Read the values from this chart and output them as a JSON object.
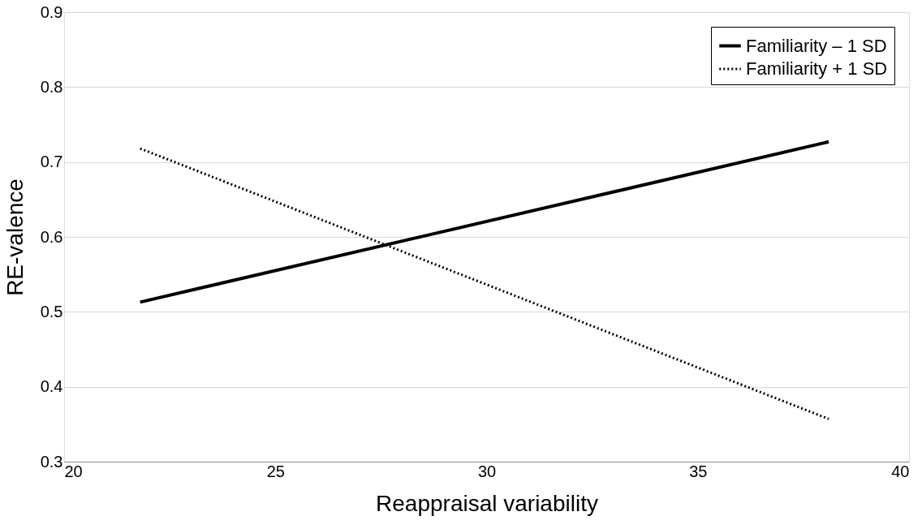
{
  "chart_data": {
    "type": "line",
    "xlabel": "Reappraisal variability",
    "ylabel": "RE-valence",
    "xlim": [
      20,
      40
    ],
    "xticks": [
      20,
      25,
      30,
      35,
      40
    ],
    "ylim": [
      0.3,
      0.9
    ],
    "yticks": [
      0.3,
      0.4,
      0.5,
      0.6,
      0.7,
      0.8,
      0.9
    ],
    "x": [
      21.8,
      38.1
    ],
    "grid": "y",
    "legend": "top right",
    "marker": "none",
    "series": [
      {
        "name": "Familiarity – 1 SD",
        "color": "#000000",
        "line_style": "solid",
        "values": [
          0.513,
          0.727
        ]
      },
      {
        "name": "Familiarity + 1 SD",
        "color": "#000000",
        "line_style": "dotted",
        "values": [
          0.718,
          0.357
        ]
      }
    ]
  }
}
